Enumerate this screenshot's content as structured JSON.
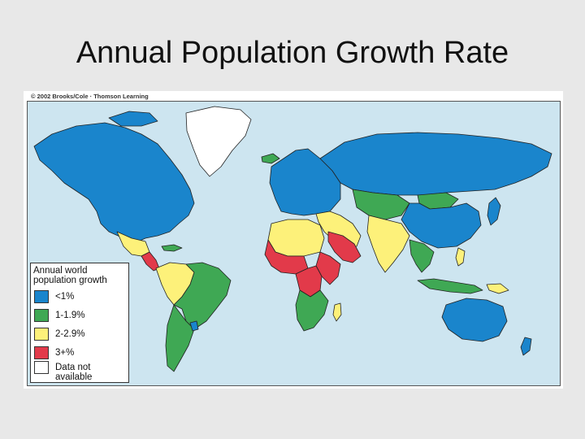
{
  "slide": {
    "title": "Annual Population Growth Rate"
  },
  "figure": {
    "copyright": "© 2002 Brooks/Cole · Thomson Learning"
  },
  "legend": {
    "title": "Annual world population growth",
    "items": [
      {
        "label": "<1%",
        "color": "#1a85cc"
      },
      {
        "label": "1-1.9%",
        "color": "#3fa854"
      },
      {
        "label": "2-2.9%",
        "color": "#fdf17a"
      },
      {
        "label": "3+%",
        "color": "#e23a4a"
      },
      {
        "label": "Data not available",
        "color": "#ffffff"
      }
    ]
  },
  "colors": {
    "ocean": "#cde5f0",
    "border": "#222222"
  }
}
